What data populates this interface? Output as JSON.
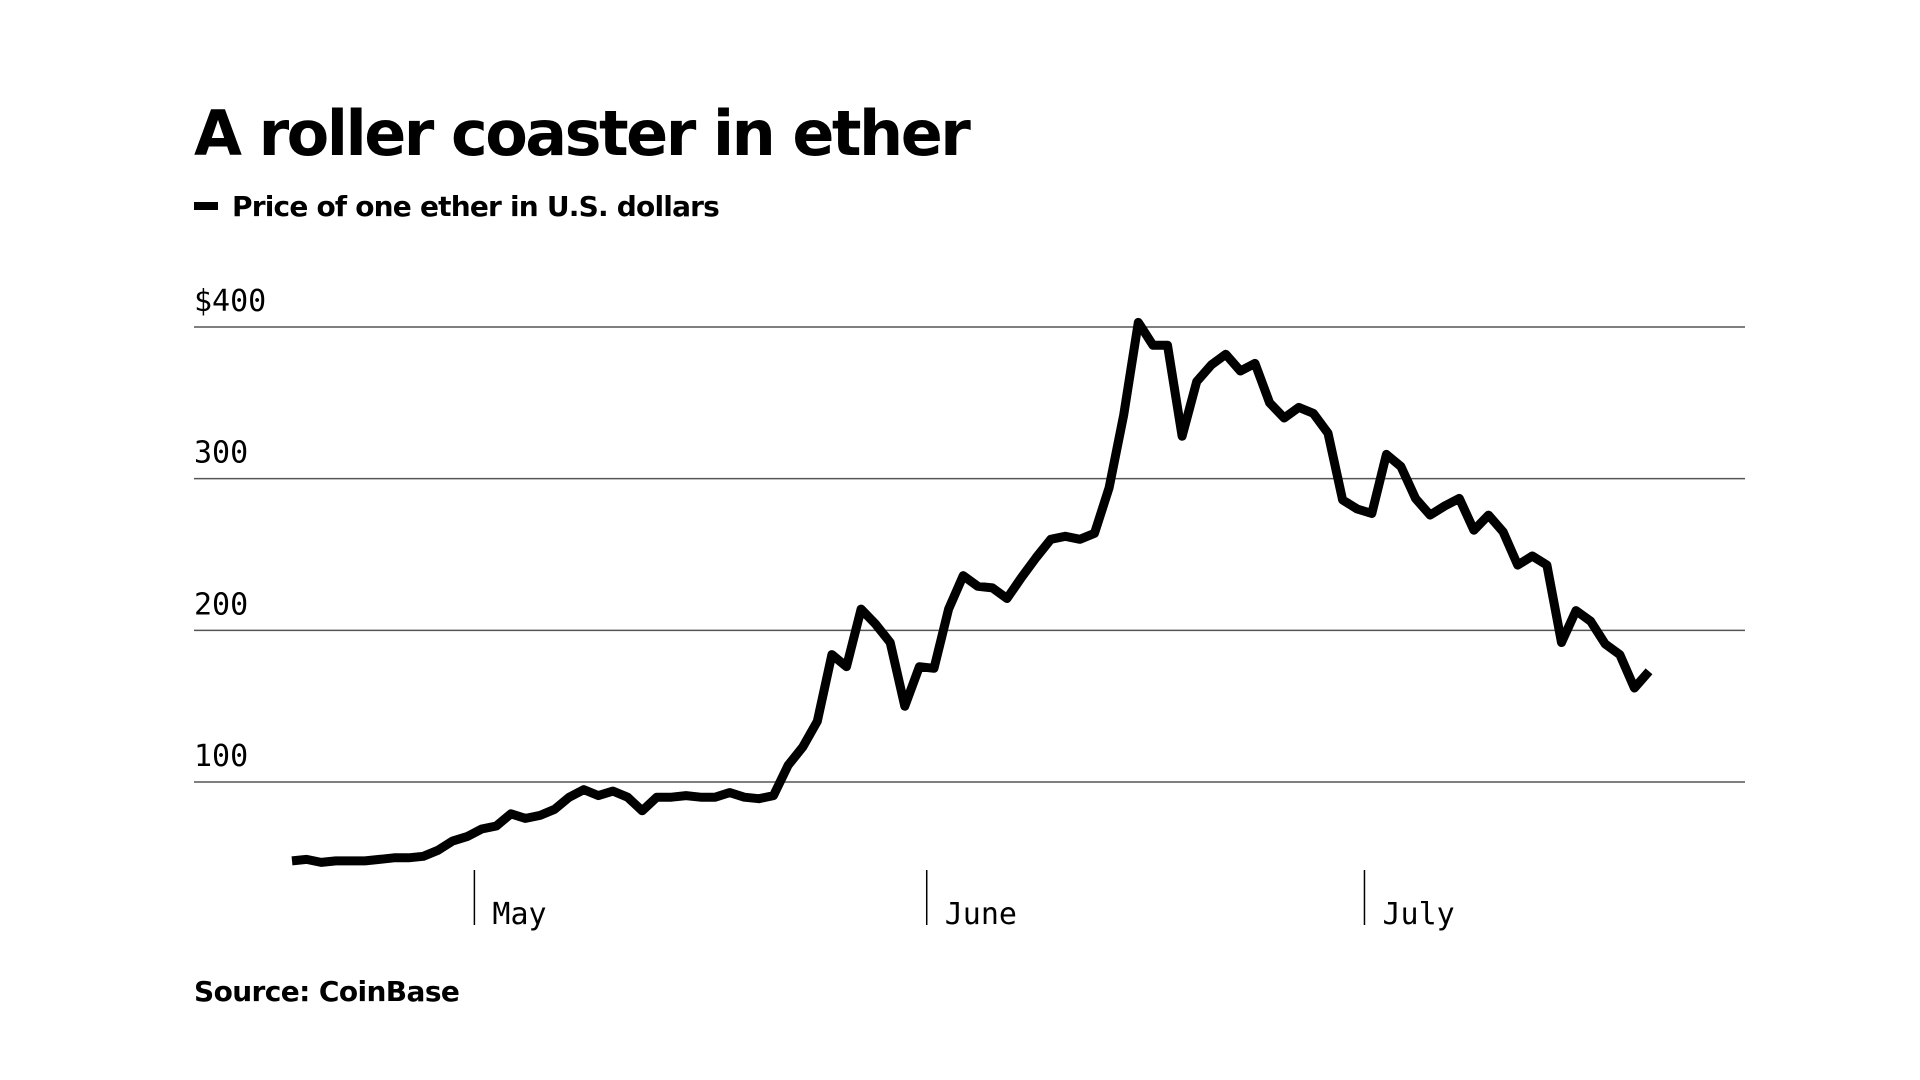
{
  "title": "A roller coaster in ether",
  "legend": {
    "label": "Price of one ether in U.S. dollars",
    "color": "#000000"
  },
  "source": "Source: CoinBase",
  "colors": {
    "line": "#000000",
    "grid": "#555555",
    "background": "#ffffff"
  },
  "chart_data": {
    "type": "line",
    "title": "A roller coaster in ether",
    "xlabel": "",
    "ylabel": "",
    "ylim": [
      50,
      400
    ],
    "y_ticks": [
      {
        "value": 400,
        "label": "$400"
      },
      {
        "value": 300,
        "label": "300"
      },
      {
        "value": 200,
        "label": "200"
      },
      {
        "value": 100,
        "label": "100"
      }
    ],
    "x_ticks": [
      {
        "index": 12.5,
        "label": "May"
      },
      {
        "index": 43.5,
        "label": "June"
      },
      {
        "index": 73.5,
        "label": "July"
      }
    ],
    "grid": true,
    "legend_position": "top-left",
    "series": [
      {
        "name": "Price of one ether in U.S. dollars",
        "values": [
          48,
          49,
          47,
          48,
          48,
          48,
          49,
          50,
          50,
          51,
          55,
          61,
          64,
          69,
          71,
          79,
          76,
          78,
          82,
          90,
          95,
          91,
          94,
          90,
          81,
          90,
          90,
          91,
          90,
          90,
          93,
          90,
          89,
          91,
          111,
          123,
          140,
          184,
          176,
          214,
          204,
          192,
          150,
          176,
          175,
          214,
          236,
          229,
          228,
          221,
          235,
          248,
          260,
          262,
          260,
          264,
          294,
          342,
          403,
          388,
          388,
          328,
          364,
          375,
          382,
          371,
          376,
          350,
          340,
          347,
          343,
          330,
          286,
          280,
          277,
          316,
          308,
          287,
          276,
          282,
          287,
          266,
          276,
          265,
          243,
          249,
          243,
          192,
          213,
          206,
          191,
          184,
          162,
          173
        ]
      }
    ]
  }
}
